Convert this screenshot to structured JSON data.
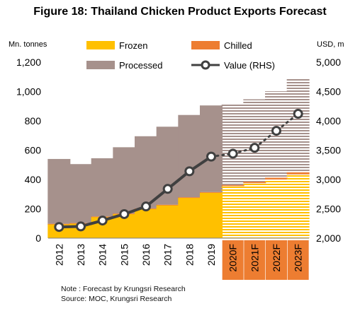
{
  "chart_data": {
    "type": "bar+line",
    "title": "Figure 18: Thailand Chicken Product Exports Forecast",
    "ylabel_left": "Mn. tonnes",
    "ylabel_right": "USD, m",
    "categories": [
      "2012",
      "2013",
      "2014",
      "2015",
      "2016",
      "2017",
      "2018",
      "2019",
      "2020F",
      "2021F",
      "2022F",
      "2023F"
    ],
    "forecast_start_index": 8,
    "y_left": {
      "min": 0,
      "max": 1200,
      "ticks": [
        0,
        200,
        400,
        600,
        800,
        1000,
        1200
      ],
      "tick_labels": [
        "0",
        "200",
        "400",
        "600",
        "800",
        "1,000",
        "1,200"
      ]
    },
    "y_right": {
      "min": 2000,
      "max": 5000,
      "ticks": [
        2000,
        2500,
        3000,
        3500,
        4000,
        4500,
        5000
      ],
      "tick_labels": [
        "2,000",
        "2,500",
        "3,000",
        "3,500",
        "4,000",
        "4,500",
        "5,000"
      ]
    },
    "series": [
      {
        "name": "Frozen",
        "kind": "bar",
        "axis": "left",
        "color": "#FFC000",
        "values": [
          95,
          100,
          145,
          165,
          200,
          225,
          275,
          310,
          355,
          375,
          400,
          435
        ]
      },
      {
        "name": "Chilled",
        "kind": "bar",
        "axis": "left",
        "color": "#ED7D31",
        "values": [
          3,
          3,
          3,
          3,
          3,
          3,
          4,
          4,
          8,
          10,
          12,
          14
        ]
      },
      {
        "name": "Processed",
        "kind": "bar",
        "axis": "left",
        "color": "#A6918C",
        "values": [
          442,
          402,
          397,
          452,
          492,
          532,
          561,
          591,
          552,
          562,
          590,
          636
        ]
      },
      {
        "name": "Value (RHS)",
        "kind": "line",
        "axis": "right",
        "color": "#404040",
        "values": [
          2190,
          2200,
          2300,
          2410,
          2540,
          2840,
          3140,
          3390,
          3440,
          3540,
          3830,
          4120
        ]
      }
    ],
    "legend": [
      "Frozen",
      "Chilled",
      "Processed",
      "Value (RHS)"
    ],
    "legend_position": "top-left inside plot",
    "grid": false
  },
  "notes": {
    "line1": "Note : Forecast by Krungsri Research",
    "line2": "Source: MOC, Krungsri Research"
  }
}
